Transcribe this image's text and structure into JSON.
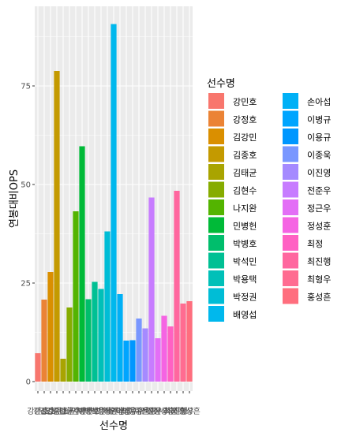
{
  "chart_data": {
    "type": "bar",
    "xlabel": "선수명",
    "ylabel": "연봉대비OPS",
    "ylim": [
      0,
      93
    ],
    "yticks": [
      0,
      25,
      50,
      75
    ],
    "grid": true,
    "legend_title": "선수명",
    "legend_position": "right",
    "categories": [
      "강민호",
      "강정호",
      "김강민",
      "김종호",
      "김태균",
      "김현수",
      "나지완",
      "민병헌",
      "박병호",
      "박석민",
      "박용택",
      "박정권",
      "배영섭",
      "손아섭",
      "이병규",
      "이용규",
      "이종욱",
      "이진영",
      "전준우",
      "정근우",
      "정성훈",
      "최정",
      "최진행",
      "최형우",
      "홍성흔"
    ],
    "values": [
      7.2,
      20.8,
      27.8,
      78.8,
      5.8,
      18.8,
      43.2,
      59.7,
      20.9,
      25.3,
      23.5,
      38.1,
      90.7,
      22.2,
      10.4,
      10.5,
      16.0,
      13.5,
      46.7,
      11.0,
      16.7,
      14.0,
      48.4,
      19.8,
      20.4
    ],
    "colors": [
      "#F8766D",
      "#EB8335",
      "#DA8F00",
      "#C49A00",
      "#A9A400",
      "#86AC00",
      "#53B400",
      "#00BA38",
      "#00BE6C",
      "#00C094",
      "#00C0B8",
      "#00BDD6",
      "#00B8ED",
      "#00B0F6",
      "#00A5FF",
      "#0097FF",
      "#7997FF",
      "#A58AFF",
      "#C77CFF",
      "#E36EF6",
      "#F564E3",
      "#FF61C3",
      "#FF679F",
      "#FF6C91",
      "#FF6E7E"
    ]
  }
}
